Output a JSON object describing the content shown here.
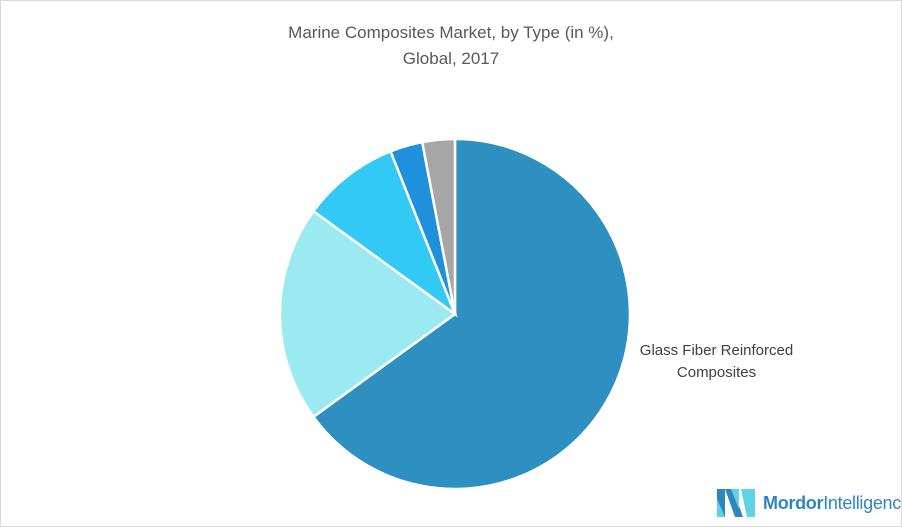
{
  "chart_data": {
    "type": "pie",
    "title_line1": "Marine Composites Market, by Type (in %),",
    "title_line2": "Global, 2017",
    "slices": [
      {
        "label": "Glass Fiber Reinforced Composites",
        "value": 65,
        "color": "#2e8fc1"
      },
      {
        "label": "",
        "value": 20,
        "color": "#9beaf2"
      },
      {
        "label": "",
        "value": 9,
        "color": "#33c9f5"
      },
      {
        "label": "",
        "value": 3,
        "color": "#1e90dc"
      },
      {
        "label": "",
        "value": 3,
        "color": "#a6a6a6"
      }
    ],
    "start_angle": "top",
    "direction": "clockwise",
    "legend": "none",
    "data_labels": {
      "line1": "Glass Fiber Reinforced",
      "line2": "Composites"
    }
  },
  "logo": {
    "bold": "Mordor",
    "rest": "Intelligence"
  }
}
